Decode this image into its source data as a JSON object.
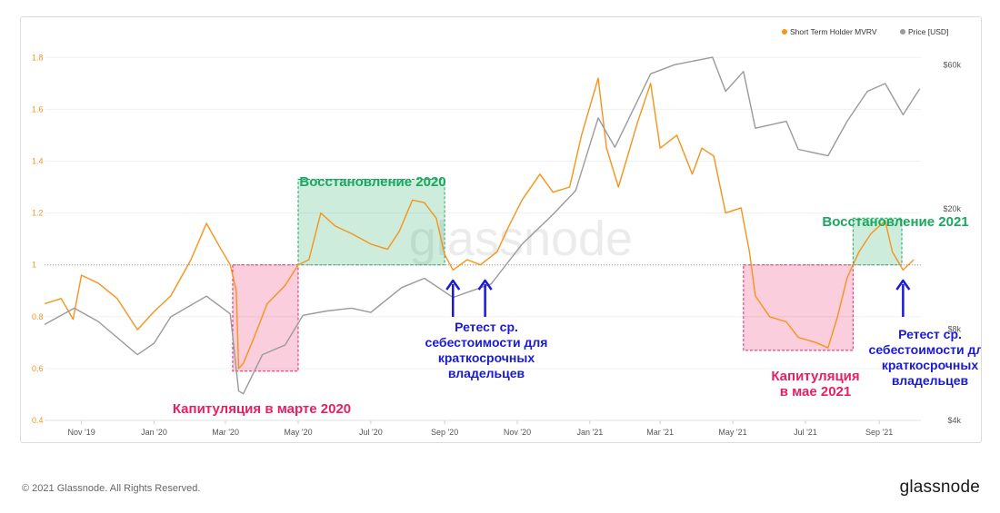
{
  "chart_data": {
    "type": "line",
    "watermark": "glassnode",
    "legend_position": "top-right",
    "grid": true,
    "x_ticks": [
      "Nov '19",
      "Jan '20",
      "Mar '20",
      "May '20",
      "Jul '20",
      "Sep '20",
      "Nov '20",
      "Jan '21",
      "Mar '21",
      "May '21",
      "Jul '21",
      "Sep '21"
    ],
    "x_range": [
      "2019-10-01",
      "2021-10-06"
    ],
    "y_left": {
      "ticks": [
        "0.4",
        "0.6",
        "0.8",
        "1",
        "1.2",
        "1.4",
        "1.6",
        "1.8"
      ],
      "range": [
        0.4,
        1.85
      ]
    },
    "y_right": {
      "scale": "log",
      "ticks": [
        "$4k",
        "$8k",
        "$20k",
        "$60k"
      ],
      "range": [
        4000,
        70000
      ]
    },
    "series": [
      {
        "name": "Short Term Holder MVRV",
        "color": "#f7931a",
        "axis": "left",
        "points": [
          [
            "2019-10-01",
            0.85
          ],
          [
            "2019-10-15",
            0.87
          ],
          [
            "2019-10-25",
            0.79
          ],
          [
            "2019-11-01",
            0.96
          ],
          [
            "2019-11-15",
            0.93
          ],
          [
            "2019-12-01",
            0.87
          ],
          [
            "2019-12-18",
            0.75
          ],
          [
            "2020-01-01",
            0.82
          ],
          [
            "2020-01-15",
            0.88
          ],
          [
            "2020-02-01",
            1.02
          ],
          [
            "2020-02-14",
            1.16
          ],
          [
            "2020-02-25",
            1.07
          ],
          [
            "2020-03-05",
            1.0
          ],
          [
            "2020-03-10",
            0.9
          ],
          [
            "2020-03-12",
            0.6
          ],
          [
            "2020-03-16",
            0.62
          ],
          [
            "2020-03-25",
            0.72
          ],
          [
            "2020-04-05",
            0.85
          ],
          [
            "2020-04-20",
            0.92
          ],
          [
            "2020-05-01",
            1.0
          ],
          [
            "2020-05-10",
            1.02
          ],
          [
            "2020-05-20",
            1.2
          ],
          [
            "2020-06-01",
            1.15
          ],
          [
            "2020-06-15",
            1.12
          ],
          [
            "2020-07-01",
            1.08
          ],
          [
            "2020-07-15",
            1.06
          ],
          [
            "2020-07-25",
            1.13
          ],
          [
            "2020-08-05",
            1.25
          ],
          [
            "2020-08-15",
            1.24
          ],
          [
            "2020-08-25",
            1.18
          ],
          [
            "2020-09-01",
            1.04
          ],
          [
            "2020-09-08",
            0.98
          ],
          [
            "2020-09-20",
            1.02
          ],
          [
            "2020-10-01",
            1.0
          ],
          [
            "2020-10-15",
            1.05
          ],
          [
            "2020-10-25",
            1.15
          ],
          [
            "2020-11-05",
            1.25
          ],
          [
            "2020-11-20",
            1.35
          ],
          [
            "2020-12-01",
            1.28
          ],
          [
            "2020-12-15",
            1.3
          ],
          [
            "2020-12-25",
            1.5
          ],
          [
            "2021-01-08",
            1.72
          ],
          [
            "2021-01-15",
            1.45
          ],
          [
            "2021-01-25",
            1.3
          ],
          [
            "2021-02-10",
            1.55
          ],
          [
            "2021-02-21",
            1.7
          ],
          [
            "2021-03-01",
            1.45
          ],
          [
            "2021-03-15",
            1.5
          ],
          [
            "2021-03-28",
            1.35
          ],
          [
            "2021-04-05",
            1.45
          ],
          [
            "2021-04-15",
            1.42
          ],
          [
            "2021-04-25",
            1.2
          ],
          [
            "2021-05-08",
            1.22
          ],
          [
            "2021-05-15",
            1.05
          ],
          [
            "2021-05-20",
            0.88
          ],
          [
            "2021-06-01",
            0.8
          ],
          [
            "2021-06-15",
            0.78
          ],
          [
            "2021-06-25",
            0.72
          ],
          [
            "2021-07-10",
            0.7
          ],
          [
            "2021-07-20",
            0.68
          ],
          [
            "2021-07-28",
            0.8
          ],
          [
            "2021-08-05",
            0.95
          ],
          [
            "2021-08-15",
            1.05
          ],
          [
            "2021-08-25",
            1.12
          ],
          [
            "2021-09-06",
            1.17
          ],
          [
            "2021-09-12",
            1.05
          ],
          [
            "2021-09-21",
            0.98
          ],
          [
            "2021-09-30",
            1.02
          ]
        ]
      },
      {
        "name": "Price [USD]",
        "color": "#9a9a9a",
        "axis": "right",
        "points": [
          [
            "2019-10-01",
            8300
          ],
          [
            "2019-10-26",
            9400
          ],
          [
            "2019-11-15",
            8500
          ],
          [
            "2019-12-18",
            6600
          ],
          [
            "2020-01-01",
            7200
          ],
          [
            "2020-01-15",
            8800
          ],
          [
            "2020-02-14",
            10300
          ],
          [
            "2020-03-05",
            9000
          ],
          [
            "2020-03-12",
            5000
          ],
          [
            "2020-03-16",
            4900
          ],
          [
            "2020-04-01",
            6600
          ],
          [
            "2020-04-20",
            7100
          ],
          [
            "2020-05-05",
            8900
          ],
          [
            "2020-05-25",
            9200
          ],
          [
            "2020-06-15",
            9400
          ],
          [
            "2020-07-01",
            9100
          ],
          [
            "2020-07-27",
            11000
          ],
          [
            "2020-08-15",
            11800
          ],
          [
            "2020-09-08",
            10200
          ],
          [
            "2020-10-10",
            11300
          ],
          [
            "2020-11-05",
            15300
          ],
          [
            "2020-12-01",
            19200
          ],
          [
            "2020-12-20",
            23000
          ],
          [
            "2021-01-08",
            40000
          ],
          [
            "2021-01-22",
            32000
          ],
          [
            "2021-02-21",
            56000
          ],
          [
            "2021-03-13",
            60000
          ],
          [
            "2021-04-14",
            63500
          ],
          [
            "2021-04-25",
            49000
          ],
          [
            "2021-05-10",
            57000
          ],
          [
            "2021-05-20",
            37000
          ],
          [
            "2021-06-15",
            39000
          ],
          [
            "2021-06-25",
            31500
          ],
          [
            "2021-07-20",
            30000
          ],
          [
            "2021-08-05",
            39000
          ],
          [
            "2021-08-22",
            49000
          ],
          [
            "2021-09-06",
            52000
          ],
          [
            "2021-09-21",
            41000
          ],
          [
            "2021-10-05",
            50000
          ]
        ]
      }
    ],
    "reference_line": {
      "value": 1,
      "style": "dotted"
    },
    "regions": [
      {
        "from": "2020-03-07",
        "to": "2020-05-01",
        "y": [
          0.59,
          1.0
        ],
        "color": "#e91e63",
        "label": "Капитуляция в марте 2020",
        "label_lines": [
          "Капитуляция в марте 2020"
        ]
      },
      {
        "from": "2020-05-01",
        "to": "2020-09-01",
        "y": [
          1.0,
          1.33
        ],
        "color": "#1aa760",
        "label": "Восстановление 2020",
        "label_lines": [
          "Восстановление 2020"
        ]
      },
      {
        "from": "2021-05-10",
        "to": "2021-08-10",
        "y": [
          0.67,
          1.0
        ],
        "color": "#e91e63",
        "label": "Капитуляция в мае 2021",
        "label_lines": [
          "Капитуляция",
          "в мае 2021"
        ]
      },
      {
        "from": "2021-08-10",
        "to": "2021-09-20",
        "y": [
          1.0,
          1.18
        ],
        "color": "#1aa760",
        "label": "Восстановление 2021",
        "label_lines": [
          "Восстановление 2021"
        ]
      }
    ],
    "annotations": [
      {
        "text": "Ретест ср. себестоимости для краткосрочных владельцев",
        "lines": [
          "Ретест ср.",
          "себестоимости для",
          "краткосрочных",
          "владельцев"
        ],
        "color": "#1a1ad6",
        "arrows": [
          "2020-09-08",
          "2020-10-05"
        ]
      },
      {
        "text": "Ретест ср. себестоимости для краткосрочных владельцев",
        "lines": [
          "Ретест ср.",
          "себестоимости для",
          "краткосрочных",
          "владельцев"
        ],
        "color": "#1a1ad6",
        "arrows": [
          "2021-09-21"
        ]
      }
    ]
  },
  "footer": {
    "copyright": "© 2021 Glassnode. All Rights Reserved.",
    "logo": "glassnode"
  }
}
